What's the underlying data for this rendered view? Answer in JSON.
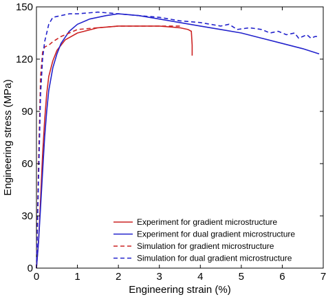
{
  "chart_data": {
    "type": "line",
    "title": "",
    "xlabel": "Engineering strain (%)",
    "ylabel": "Engineering stress (MPa)",
    "xlim": [
      0,
      7
    ],
    "ylim": [
      0,
      150
    ],
    "xticks": [
      0,
      1,
      2,
      3,
      4,
      5,
      6,
      7
    ],
    "yticks": [
      0,
      30,
      60,
      90,
      120,
      150
    ],
    "grid": false,
    "legend_position": "bottom-right",
    "series": [
      {
        "name": "Experiment for gradient microstructure",
        "color": "#cc2222",
        "dash": "solid",
        "points": [
          [
            0,
            0
          ],
          [
            0.05,
            15
          ],
          [
            0.1,
            40
          ],
          [
            0.15,
            65
          ],
          [
            0.2,
            85
          ],
          [
            0.25,
            100
          ],
          [
            0.3,
            110
          ],
          [
            0.4,
            119
          ],
          [
            0.5,
            125
          ],
          [
            0.7,
            131
          ],
          [
            1.0,
            135
          ],
          [
            1.5,
            138
          ],
          [
            2.0,
            139
          ],
          [
            2.5,
            139
          ],
          [
            3.0,
            139
          ],
          [
            3.5,
            138
          ],
          [
            3.7,
            137
          ],
          [
            3.78,
            136
          ],
          [
            3.8,
            128
          ],
          [
            3.8,
            122
          ]
        ]
      },
      {
        "name": "Experiment for dual gradient microstructure",
        "color": "#2222cc",
        "dash": "solid",
        "points": [
          [
            0,
            0
          ],
          [
            0.05,
            15
          ],
          [
            0.1,
            35
          ],
          [
            0.15,
            55
          ],
          [
            0.2,
            75
          ],
          [
            0.25,
            90
          ],
          [
            0.3,
            102
          ],
          [
            0.4,
            115
          ],
          [
            0.5,
            123
          ],
          [
            0.6,
            129
          ],
          [
            0.8,
            136
          ],
          [
            1.0,
            140
          ],
          [
            1.3,
            143
          ],
          [
            1.7,
            145
          ],
          [
            2.0,
            146
          ],
          [
            2.5,
            145
          ],
          [
            3.0,
            143
          ],
          [
            3.5,
            141
          ],
          [
            4.0,
            139
          ],
          [
            4.5,
            137
          ],
          [
            5.0,
            135
          ],
          [
            5.5,
            132
          ],
          [
            6.0,
            129
          ],
          [
            6.5,
            126
          ],
          [
            6.9,
            123
          ]
        ]
      },
      {
        "name": "Simulation for gradient microstructure",
        "color": "#cc2222",
        "dash": "dashed",
        "points": [
          [
            0,
            0
          ],
          [
            0.05,
            60
          ],
          [
            0.1,
            110
          ],
          [
            0.15,
            124
          ],
          [
            0.2,
            127
          ],
          [
            0.3,
            128
          ],
          [
            0.4,
            130
          ],
          [
            0.6,
            133
          ],
          [
            0.8,
            135
          ],
          [
            1.0,
            137
          ],
          [
            1.5,
            138
          ],
          [
            2.0,
            139
          ],
          [
            2.5,
            139
          ],
          [
            3.0,
            139
          ],
          [
            3.5,
            139
          ]
        ]
      },
      {
        "name": "Simulation for dual gradient microstructure",
        "color": "#2222cc",
        "dash": "dashed",
        "points": [
          [
            0,
            0
          ],
          [
            0.05,
            50
          ],
          [
            0.1,
            100
          ],
          [
            0.15,
            120
          ],
          [
            0.2,
            130
          ],
          [
            0.3,
            140
          ],
          [
            0.4,
            144
          ],
          [
            0.6,
            145
          ],
          [
            0.8,
            146
          ],
          [
            1.0,
            146
          ],
          [
            1.5,
            147
          ],
          [
            2.0,
            146
          ],
          [
            2.5,
            145
          ],
          [
            3.0,
            144
          ],
          [
            3.5,
            142
          ],
          [
            4.0,
            141
          ],
          [
            4.5,
            139
          ],
          [
            4.7,
            140
          ],
          [
            4.9,
            137
          ],
          [
            5.2,
            138
          ],
          [
            5.5,
            137
          ],
          [
            5.7,
            135
          ],
          [
            5.9,
            136
          ],
          [
            6.1,
            134
          ],
          [
            6.3,
            135
          ],
          [
            6.4,
            132
          ],
          [
            6.5,
            133
          ],
          [
            6.6,
            134
          ],
          [
            6.7,
            132
          ],
          [
            6.8,
            133
          ],
          [
            6.9,
            133
          ]
        ]
      }
    ]
  }
}
